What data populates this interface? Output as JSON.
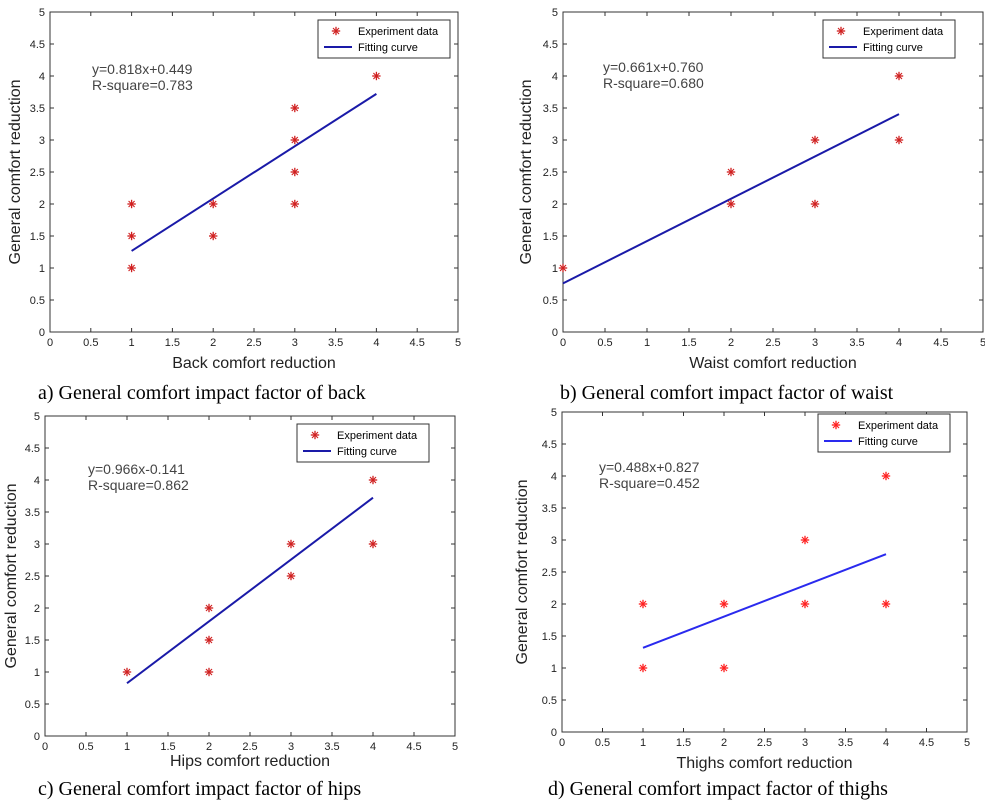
{
  "chart_data": [
    {
      "type": "scatter",
      "xlabel": "Back comfort reduction",
      "ylabel": "General comfort reduction",
      "xlim": [
        0,
        5
      ],
      "ylim": [
        0,
        5
      ],
      "ticks": [
        "0",
        "0.5",
        "1",
        "1.5",
        "2",
        "2.5",
        "3",
        "3.5",
        "4",
        "4.5",
        "5"
      ],
      "points_x": [
        1,
        1,
        1,
        2,
        2,
        3,
        3,
        3,
        3,
        4
      ],
      "points_y": [
        1,
        1.5,
        2,
        1.5,
        2,
        2,
        2.5,
        3,
        3.5,
        4
      ],
      "fit": {
        "slope": 0.818,
        "intercept": 0.449,
        "x_range": [
          1,
          4
        ]
      },
      "equation": "y=0.818x+0.449",
      "r_square": "R-square=0.783",
      "legend": [
        "Experiment data",
        "Fitting curve"
      ],
      "legend_position": "top-right",
      "marker_color": "#d02020",
      "line_color": "#1a1aa8"
    },
    {
      "type": "scatter",
      "xlabel": "Waist comfort reduction",
      "ylabel": "General comfort reduction",
      "xlim": [
        0,
        5
      ],
      "ylim": [
        0,
        5
      ],
      "ticks": [
        "0",
        "0.5",
        "1",
        "1.5",
        "2",
        "2.5",
        "3",
        "3.5",
        "4",
        "4.5",
        "5"
      ],
      "points_x": [
        0,
        2,
        2,
        3,
        3,
        4,
        4
      ],
      "points_y": [
        1,
        2,
        2.5,
        2,
        3,
        3,
        4
      ],
      "fit": {
        "slope": 0.661,
        "intercept": 0.76,
        "x_range": [
          0,
          4
        ]
      },
      "equation": "y=0.661x+0.760",
      "r_square": "R-square=0.680",
      "legend": [
        "Experiment data",
        "Fitting curve"
      ],
      "legend_position": "top-right",
      "marker_color": "#d02020",
      "line_color": "#1a1aa8"
    },
    {
      "type": "scatter",
      "xlabel": "Hips comfort reduction",
      "ylabel": "General comfort reduction",
      "xlim": [
        0,
        5
      ],
      "ylim": [
        0,
        5
      ],
      "ticks": [
        "0",
        "0.5",
        "1",
        "1.5",
        "2",
        "2.5",
        "3",
        "3.5",
        "4",
        "4.5",
        "5"
      ],
      "points_x": [
        1,
        2,
        2,
        2,
        3,
        3,
        4,
        4
      ],
      "points_y": [
        1,
        1,
        1.5,
        2,
        2.5,
        3,
        3,
        4
      ],
      "fit": {
        "slope": 0.966,
        "intercept": -0.141,
        "x_range": [
          1,
          4
        ]
      },
      "equation": "y=0.966x-0.141",
      "r_square": "R-square=0.862",
      "legend": [
        "Experiment data",
        "Fitting curve"
      ],
      "legend_position": "top-right",
      "marker_color": "#d02020",
      "line_color": "#1a1aa8"
    },
    {
      "type": "scatter",
      "xlabel": "Thighs comfort reduction",
      "ylabel": "General comfort reduction",
      "xlim": [
        0,
        5
      ],
      "ylim": [
        0,
        5
      ],
      "ticks": [
        "0",
        "0.5",
        "1",
        "1.5",
        "2",
        "2.5",
        "3",
        "3.5",
        "4",
        "4.5",
        "5"
      ],
      "points_x": [
        1,
        1,
        2,
        2,
        3,
        3,
        4,
        4
      ],
      "points_y": [
        1,
        2,
        1,
        2,
        2,
        3,
        2,
        4
      ],
      "fit": {
        "slope": 0.488,
        "intercept": 0.827,
        "x_range": [
          1,
          4
        ]
      },
      "equation": "y=0.488x+0.827",
      "r_square": "R-square=0.452",
      "legend": [
        "Experiment data",
        "Fitting curve"
      ],
      "legend_position": "top-right",
      "marker_color": "#ff2020",
      "line_color": "#2a2aee"
    }
  ],
  "captions": {
    "a": "a) General comfort impact factor of back",
    "b": "b) General comfort impact factor of waist",
    "c": "c) General comfort impact factor of hips",
    "d": "d) General comfort impact factor of thighs"
  }
}
